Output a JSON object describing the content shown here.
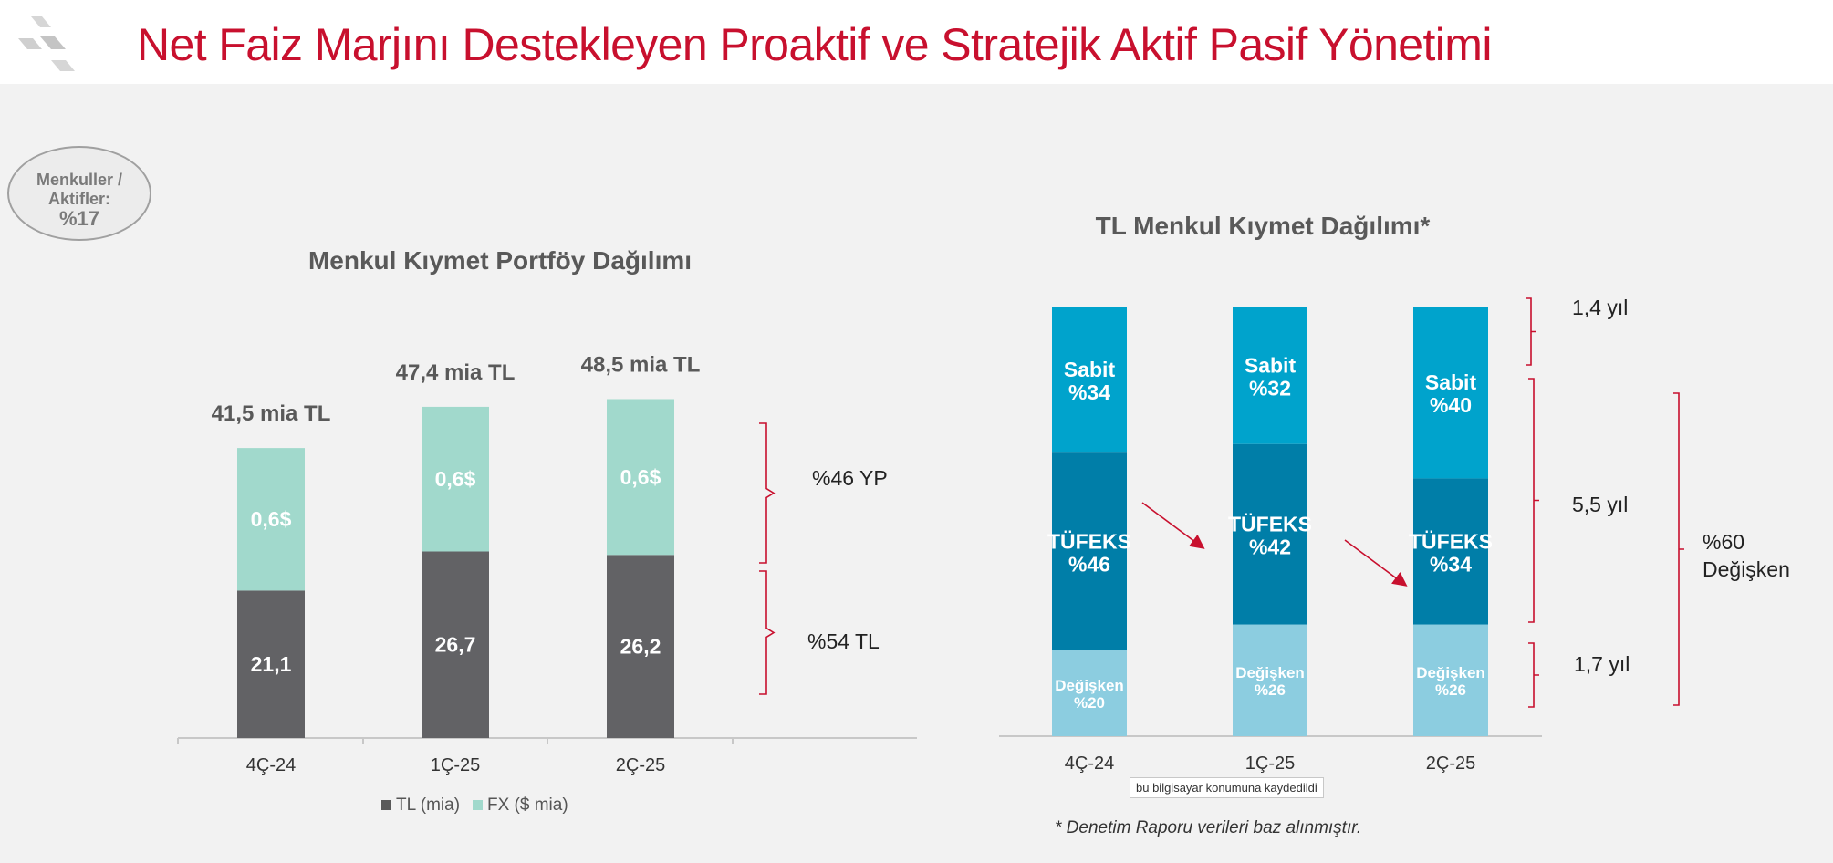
{
  "header": {
    "title": "Net Faiz Marjını Destekleyen Proaktif ve Stratejik Aktif Pasif Yönetimi"
  },
  "badge": {
    "line1": "Menkuller /",
    "line2": "Aktifler:",
    "value": "%17"
  },
  "colors": {
    "accent": "#c8102e",
    "tl": "#626265",
    "fx": "#a1d9cc",
    "sabit": "#00a3cc",
    "tufeks": "#007ea8",
    "degisken": "#8ccde0"
  },
  "chart_data": [
    {
      "type": "bar",
      "title": "Menkul Kıymet Portföy Dağılımı",
      "categories": [
        "4Ç-24",
        "1Ç-25",
        "2Ç-25"
      ],
      "totals": [
        "41,5 mia TL",
        "47,4 mia TL",
        "48,5 mia TL"
      ],
      "series": [
        {
          "name": "TL (mia)",
          "values": [
            21.1,
            26.7,
            26.2
          ],
          "labels": [
            "21,1",
            "26,7",
            "26,2"
          ]
        },
        {
          "name": "FX ($ mia)",
          "values": [
            0.6,
            0.6,
            0.6
          ],
          "labels": [
            "0,6$",
            "0,6$",
            "0,6$"
          ],
          "tl_equivalent": [
            20.4,
            20.7,
            22.3
          ]
        }
      ],
      "annotations": [
        "%46 YP",
        "%54 TL"
      ],
      "legend_position": "bottom",
      "grid": false
    },
    {
      "type": "bar",
      "stacked": "100%",
      "title": "TL Menkul Kıymet Dağılımı*",
      "categories": [
        "4Ç-24",
        "1Ç-25",
        "2Ç-25"
      ],
      "series": [
        {
          "name": "Değişken",
          "values": [
            20,
            26,
            26
          ],
          "labels": [
            "%20",
            "%26",
            "%26"
          ]
        },
        {
          "name": "TÜFEKS",
          "values": [
            46,
            42,
            34
          ],
          "labels": [
            "%46",
            "%42",
            "%34"
          ]
        },
        {
          "name": "Sabit",
          "values": [
            34,
            32,
            40
          ],
          "labels": [
            "%34",
            "%32",
            "%40"
          ]
        }
      ],
      "annotations": [
        "1,4 yıl",
        "5,5 yıl",
        "1,7 yıl"
      ],
      "bracket_label": [
        "%60",
        "Değişken"
      ],
      "footnote": "* Denetim Raporu verileri baz alınmıştır.",
      "grid": false
    }
  ],
  "tooltip": "bu bilgisayar konumuna kaydedildi"
}
